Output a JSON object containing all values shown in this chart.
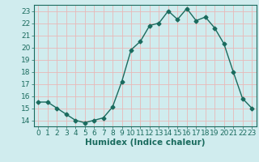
{
  "x": [
    0,
    1,
    2,
    3,
    4,
    5,
    6,
    7,
    8,
    9,
    10,
    11,
    12,
    13,
    14,
    15,
    16,
    17,
    18,
    19,
    20,
    21,
    22,
    23
  ],
  "y": [
    15.5,
    15.5,
    15.0,
    14.5,
    14.0,
    13.8,
    14.0,
    14.2,
    15.1,
    17.2,
    19.8,
    20.5,
    21.8,
    22.0,
    23.0,
    22.3,
    23.2,
    22.2,
    22.5,
    21.6,
    20.3,
    18.0,
    15.8,
    15.0
  ],
  "line_color": "#1a6b5e",
  "marker": "D",
  "marker_size": 2.5,
  "bg_color": "#d0ecee",
  "grid_major_color": "#e8b8b8",
  "grid_minor_color": "#e8b8b8",
  "spine_color": "#1a6b5e",
  "xlabel": "Humidex (Indice chaleur)",
  "xlim": [
    -0.5,
    23.5
  ],
  "ylim": [
    13.5,
    23.5
  ],
  "yticks": [
    14,
    15,
    16,
    17,
    18,
    19,
    20,
    21,
    22,
    23
  ],
  "xticks": [
    0,
    1,
    2,
    3,
    4,
    5,
    6,
    7,
    8,
    9,
    10,
    11,
    12,
    13,
    14,
    15,
    16,
    17,
    18,
    19,
    20,
    21,
    22,
    23
  ],
  "tick_color": "#1a6b5e",
  "tick_label_fontsize": 6.5,
  "xlabel_fontsize": 7.5,
  "xlabel_fontweight": "bold",
  "linewidth": 1.0
}
